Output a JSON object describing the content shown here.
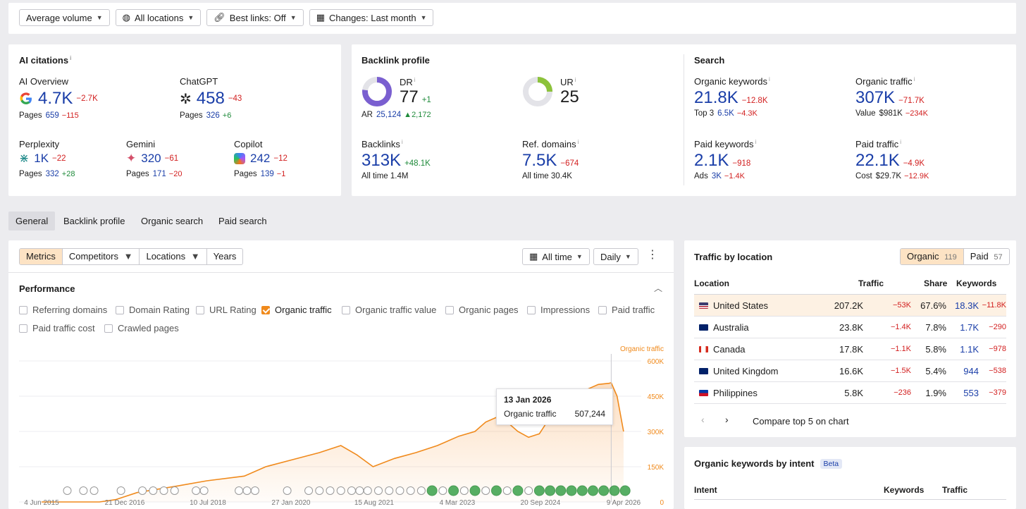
{
  "filters": {
    "volume": "Average volume",
    "locations": "All locations",
    "best_links": "Best links: Off",
    "changes": "Changes: Last month"
  },
  "ai_citations": {
    "title": "AI citations",
    "overview": {
      "label": "AI Overview",
      "value": "4.7K",
      "delta": "−2.7K",
      "pages_label": "Pages",
      "pages": "659",
      "pages_delta": "−115"
    },
    "chatgpt": {
      "label": "ChatGPT",
      "value": "458",
      "delta": "−43",
      "pages_label": "Pages",
      "pages": "326",
      "pages_delta": "+6"
    },
    "perplexity": {
      "label": "Perplexity",
      "value": "1K",
      "delta": "−22",
      "pages_label": "Pages",
      "pages": "332",
      "pages_delta": "+28"
    },
    "gemini": {
      "label": "Gemini",
      "value": "320",
      "delta": "−61",
      "pages_label": "Pages",
      "pages": "171",
      "pages_delta": "−20"
    },
    "copilot": {
      "label": "Copilot",
      "value": "242",
      "delta": "−12",
      "pages_label": "Pages",
      "pages": "139",
      "pages_delta": "−1"
    }
  },
  "backlink_profile": {
    "title": "Backlink profile",
    "dr": {
      "label": "DR",
      "value": "77",
      "delta": "+1",
      "ar_label": "AR",
      "ar": "25,124",
      "ar_delta": "2,172",
      "fill": 0.77
    },
    "ur": {
      "label": "UR",
      "value": "25",
      "fill": 0.25
    },
    "backlinks": {
      "label": "Backlinks",
      "value": "313K",
      "delta": "+48.1K",
      "all_time_label": "All time",
      "all_time": "1.4M"
    },
    "ref_domains": {
      "label": "Ref. domains",
      "value": "7.5K",
      "delta": "−674",
      "all_time_label": "All time",
      "all_time": "30.4K"
    }
  },
  "search": {
    "title": "Search",
    "organic_keywords": {
      "label": "Organic keywords",
      "value": "21.8K",
      "delta": "−12.8K",
      "sub_label": "Top 3",
      "sub": "6.5K",
      "sub_delta": "−4.3K"
    },
    "organic_traffic": {
      "label": "Organic traffic",
      "value": "307K",
      "delta": "−71.7K",
      "sub_label": "Value",
      "sub": "$981K",
      "sub_delta": "−234K"
    },
    "paid_keywords": {
      "label": "Paid keywords",
      "value": "2.1K",
      "delta": "−918",
      "sub_label": "Ads",
      "sub": "3K",
      "sub_delta": "−1.4K"
    },
    "paid_traffic": {
      "label": "Paid traffic",
      "value": "22.1K",
      "delta": "−4.9K",
      "sub_label": "Cost",
      "sub": "$29.7K",
      "sub_delta": "−12.9K"
    }
  },
  "tabs": [
    "General",
    "Backlink profile",
    "Organic search",
    "Paid search"
  ],
  "chart_controls": {
    "segments": [
      "Metrics",
      "Competitors",
      "Locations",
      "Years"
    ],
    "range": "All time",
    "interval": "Daily"
  },
  "performance": {
    "title": "Performance",
    "checkboxes": [
      {
        "label": "Referring domains",
        "checked": false
      },
      {
        "label": "Domain Rating",
        "checked": false
      },
      {
        "label": "URL Rating",
        "checked": false
      },
      {
        "label": "Organic traffic",
        "checked": true
      },
      {
        "label": "Organic traffic value",
        "checked": false
      },
      {
        "label": "Organic pages",
        "checked": false
      },
      {
        "label": "Impressions",
        "checked": false
      },
      {
        "label": "Paid traffic",
        "checked": false
      },
      {
        "label": "Paid traffic cost",
        "checked": false
      },
      {
        "label": "Crawled pages",
        "checked": false
      }
    ]
  },
  "chart_data": {
    "type": "area",
    "series_label": "Organic traffic",
    "x_ticks": [
      "4 Jun 2015",
      "21 Dec 2016",
      "10 Jul 2018",
      "27 Jan 2020",
      "15 Aug 2021",
      "4 Mar 2023",
      "20 Sep 2024",
      "9 Apr 2026"
    ],
    "y_ticks": [
      "600K",
      "450K",
      "300K",
      "150K",
      "0"
    ],
    "ylim": [
      0,
      600000
    ],
    "points": [
      [
        2015.42,
        0
      ],
      [
        2016.5,
        0
      ],
      [
        2016.8,
        10000
      ],
      [
        2017.2,
        40000
      ],
      [
        2018.0,
        70000
      ],
      [
        2018.5,
        90000
      ],
      [
        2019.2,
        110000
      ],
      [
        2019.6,
        150000
      ],
      [
        2020.1,
        180000
      ],
      [
        2020.6,
        210000
      ],
      [
        2021.0,
        240000
      ],
      [
        2021.3,
        200000
      ],
      [
        2021.6,
        150000
      ],
      [
        2022.0,
        185000
      ],
      [
        2022.4,
        210000
      ],
      [
        2022.8,
        240000
      ],
      [
        2023.2,
        280000
      ],
      [
        2023.5,
        300000
      ],
      [
        2023.7,
        340000
      ],
      [
        2023.9,
        360000
      ],
      [
        2024.1,
        340000
      ],
      [
        2024.3,
        300000
      ],
      [
        2024.5,
        275000
      ],
      [
        2024.7,
        290000
      ],
      [
        2024.9,
        360000
      ],
      [
        2025.2,
        430000
      ],
      [
        2025.5,
        470000
      ],
      [
        2025.8,
        500000
      ],
      [
        2026.0,
        505000
      ],
      [
        2026.04,
        507244
      ],
      [
        2026.15,
        450000
      ],
      [
        2026.27,
        300000
      ]
    ],
    "tooltip": {
      "date": "13 Jan 2026",
      "label": "Organic traffic",
      "value": "507,244"
    }
  },
  "traffic_by_location": {
    "title": "Traffic by location",
    "toggle_organic": "Organic",
    "toggle_organic_count": "119",
    "toggle_paid": "Paid",
    "toggle_paid_count": "57",
    "columns": [
      "Location",
      "Traffic",
      "Share",
      "Keywords"
    ],
    "rows": [
      {
        "name": "United States",
        "traffic": "207.2K",
        "traffic_delta": "−53K",
        "share": "67.6%",
        "keywords": "18.3K",
        "keywords_delta": "−11.8K"
      },
      {
        "name": "Australia",
        "traffic": "23.8K",
        "traffic_delta": "−1.4K",
        "share": "7.8%",
        "keywords": "1.7K",
        "keywords_delta": "−290"
      },
      {
        "name": "Canada",
        "traffic": "17.8K",
        "traffic_delta": "−1.1K",
        "share": "5.8%",
        "keywords": "1.1K",
        "keywords_delta": "−978"
      },
      {
        "name": "United Kingdom",
        "traffic": "16.6K",
        "traffic_delta": "−1.5K",
        "share": "5.4%",
        "keywords": "944",
        "keywords_delta": "−538"
      },
      {
        "name": "Philippines",
        "traffic": "5.8K",
        "traffic_delta": "−236",
        "share": "1.9%",
        "keywords": "553",
        "keywords_delta": "−379"
      }
    ],
    "compare": "Compare top 5 on chart"
  },
  "intent": {
    "title": "Organic keywords by intent",
    "badge": "Beta",
    "columns": [
      "Intent",
      "Keywords",
      "Traffic"
    ]
  }
}
